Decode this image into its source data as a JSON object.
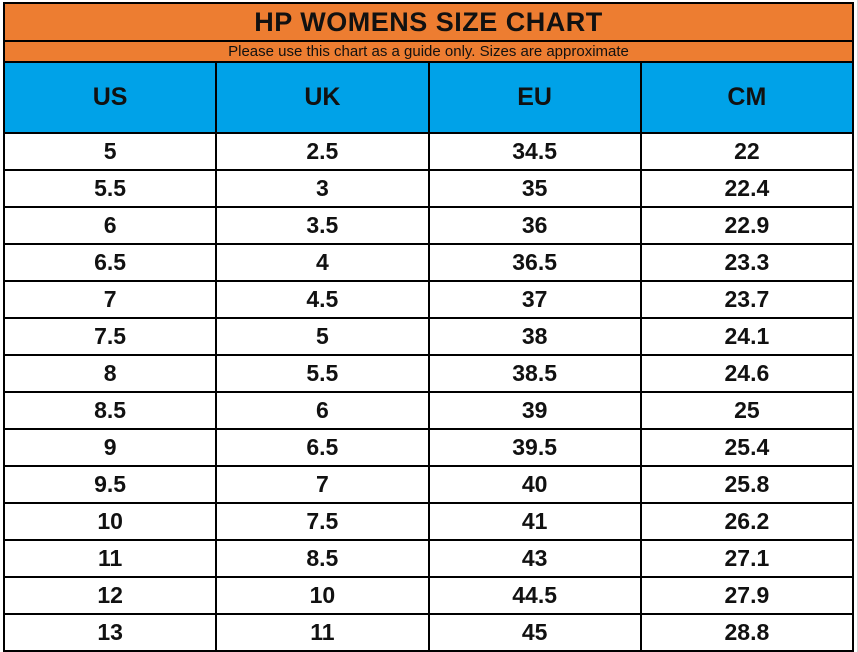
{
  "title": "HP WOMENS SIZE CHART",
  "subtitle": "Please use this chart as a guide only. Sizes are approximate",
  "colors": {
    "header_orange": "#ED7D31",
    "header_blue": "#00A2E8",
    "border_black": "#000000",
    "text_black": "#111111",
    "gridline_gray": "#d6d6d6"
  },
  "chart_data": {
    "type": "table",
    "title": "HP WOMENS SIZE CHART",
    "subtitle": "Please use this chart as a guide only. Sizes are approximate",
    "columns": [
      "US",
      "UK",
      "EU",
      "CM"
    ],
    "rows": [
      [
        "5",
        "2.5",
        "34.5",
        "22"
      ],
      [
        "5.5",
        "3",
        "35",
        "22.4"
      ],
      [
        "6",
        "3.5",
        "36",
        "22.9"
      ],
      [
        "6.5",
        "4",
        "36.5",
        "23.3"
      ],
      [
        "7",
        "4.5",
        "37",
        "23.7"
      ],
      [
        "7.5",
        "5",
        "38",
        "24.1"
      ],
      [
        "8",
        "5.5",
        "38.5",
        "24.6"
      ],
      [
        "8.5",
        "6",
        "39",
        "25"
      ],
      [
        "9",
        "6.5",
        "39.5",
        "25.4"
      ],
      [
        "9.5",
        "7",
        "40",
        "25.8"
      ],
      [
        "10",
        "7.5",
        "41",
        "26.2"
      ],
      [
        "11",
        "8.5",
        "43",
        "27.1"
      ],
      [
        "12",
        "10",
        "44.5",
        "27.9"
      ],
      [
        "13",
        "11",
        "45",
        "28.8"
      ]
    ]
  }
}
